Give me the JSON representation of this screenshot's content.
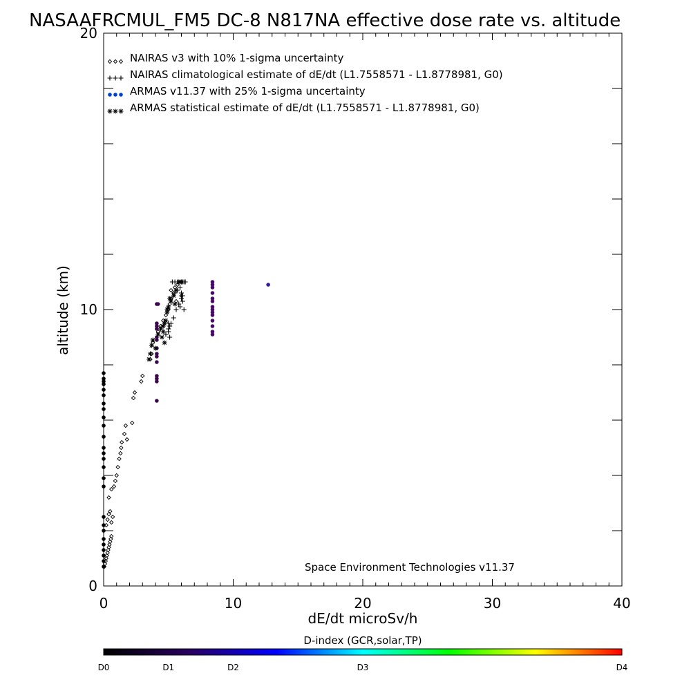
{
  "chart_data": {
    "type": "scatter",
    "title": "NASAAFRCMUL_FM5 DC-8   N817NA effective dose rate vs. altitude",
    "xlabel": "dE/dt microSv/h",
    "ylabel": "altitude (km)",
    "xlim": [
      0,
      40
    ],
    "ylim": [
      0,
      20
    ],
    "x_ticks": [
      "0",
      "10",
      "20",
      "30",
      "40"
    ],
    "y_ticks": [
      "0",
      "10",
      "20"
    ],
    "grid": false,
    "legend_placement": "top-left",
    "credit": "Space Environment Technologies v11.37",
    "series": [
      {
        "name": "NAIRAS v3 with 10% 1-sigma uncertainty",
        "marker": "diamond",
        "color": "#000000",
        "x": [
          0.05,
          0.1,
          0.15,
          0.2,
          0.25,
          0.3,
          0.35,
          0.4,
          0.45,
          0.5,
          0.55,
          0.6,
          0.2,
          0.3,
          0.4,
          0.5,
          0.6,
          0.7,
          0.4,
          0.6,
          0.8,
          0.9,
          1.0,
          1.1,
          1.2,
          1.3,
          1.35,
          1.4,
          1.6,
          1.7,
          1.8,
          2.2,
          2.3,
          2.4,
          2.9,
          3.0,
          3.6,
          3.7,
          3.8,
          4.2,
          4.4,
          4.6,
          4.8,
          5.0,
          5.1,
          5.2,
          5.4,
          5.5,
          5.7,
          5.9,
          5.2,
          5.6,
          6.0
        ],
        "y": [
          0.7,
          0.8,
          0.9,
          1.0,
          1.1,
          1.2,
          1.3,
          1.4,
          1.5,
          1.6,
          1.7,
          1.8,
          2.2,
          2.4,
          2.6,
          2.7,
          2.3,
          2.5,
          3.2,
          3.5,
          3.6,
          3.8,
          4.0,
          4.3,
          4.6,
          4.8,
          5.0,
          5.2,
          5.5,
          5.8,
          5.3,
          5.9,
          6.8,
          7.0,
          7.4,
          7.6,
          8.2,
          8.4,
          8.8,
          9.2,
          9.4,
          9.6,
          9.8,
          10.0,
          10.2,
          10.4,
          10.6,
          10.8,
          10.9,
          11.0,
          10.7,
          10.3,
          10.5
        ]
      },
      {
        "name": "NAIRAS climatological estimate of dE/dt (L1.7558571 - L1.8778981, G0)",
        "marker": "plus",
        "color": "#000000",
        "x": [
          4.8,
          5.0,
          5.2,
          5.4,
          5.6,
          5.8,
          6.0,
          6.1,
          6.2,
          5.9,
          6.1,
          5.5,
          5.7,
          5.9,
          6.0,
          5.0,
          5.1,
          5.0,
          5.1,
          5.3,
          5.5,
          5.7,
          5.9,
          6.0,
          6.1,
          6.2,
          6.3
        ],
        "y": [
          9.1,
          9.3,
          9.5,
          9.7,
          10.0,
          10.2,
          10.4,
          10.5,
          10.0,
          10.1,
          10.3,
          10.6,
          10.7,
          10.8,
          10.6,
          9.5,
          9.0,
          9.2,
          9.4,
          11.0,
          11.0,
          11.0,
          11.0,
          11.0,
          11.0,
          11.0,
          11.0
        ]
      },
      {
        "name": "ARMAS v11.37 with 25% 1-sigma uncertainty",
        "marker": "dot",
        "color": "#0044cc",
        "x": [
          0.0,
          0.0,
          0.0,
          0.0,
          0.0,
          0.0,
          0.0,
          0.0,
          0.0,
          0.0,
          0.0,
          0.0,
          0.0,
          0.0,
          0.0,
          0.0,
          0.0,
          0.0,
          0.0,
          0.0,
          0.0,
          0.0,
          0.0,
          0.0,
          0.0,
          0.0,
          4.1,
          4.1,
          4.1,
          4.1,
          4.1,
          4.1,
          4.1,
          4.1,
          4.1,
          4.1,
          4.1,
          4.1,
          4.1,
          4.1,
          4.2,
          8.4,
          8.4,
          8.4,
          8.4,
          8.4,
          8.4,
          8.4,
          8.4,
          8.4,
          8.4,
          8.4,
          8.4,
          8.4,
          8.4,
          12.7
        ],
        "y": [
          0.7,
          0.9,
          1.1,
          1.3,
          1.5,
          1.7,
          2.0,
          2.2,
          2.5,
          3.6,
          3.9,
          4.3,
          4.6,
          5.0,
          5.4,
          5.8,
          6.1,
          6.6,
          6.9,
          7.1,
          7.3,
          7.5,
          7.7,
          7.4,
          6.4,
          4.8,
          6.7,
          7.4,
          7.5,
          7.6,
          8.1,
          8.3,
          8.4,
          8.6,
          8.9,
          9.0,
          9.3,
          9.4,
          9.5,
          10.2,
          10.2,
          9.1,
          9.2,
          9.4,
          9.6,
          9.8,
          9.9,
          10.1,
          10.3,
          10.4,
          10.6,
          10.8,
          10.9,
          11.0,
          10.0,
          10.9
        ],
        "point_colors": [
          "#000000",
          "#000000",
          "#000000",
          "#000000",
          "#000000",
          "#000000",
          "#000000",
          "#000000",
          "#000000",
          "#000000",
          "#000000",
          "#000000",
          "#000000",
          "#000000",
          "#000000",
          "#000000",
          "#000000",
          "#000000",
          "#000000",
          "#000000",
          "#000000",
          "#000000",
          "#000000",
          "#000000",
          "#000000",
          "#000000",
          "#3a0a4a",
          "#3a0a4a",
          "#3a0a4a",
          "#3a0a4a",
          "#3a0a4a",
          "#3a0a4a",
          "#3a0a4a",
          "#3a0a4a",
          "#3a0a4a",
          "#3a0a4a",
          "#3a0a4a",
          "#3a0a4a",
          "#3a0a4a",
          "#3a0a4a",
          "#3a0a4a",
          "#4a0a6a",
          "#4a0a6a",
          "#4a0a6a",
          "#4a0a6a",
          "#4a0a6a",
          "#4a0a6a",
          "#4a0a6a",
          "#4a0a6a",
          "#4a0a6a",
          "#4a0a6a",
          "#4a0a6a",
          "#4a0a6a",
          "#4a0a6a",
          "#4a0a6a",
          "#3a1a9a"
        ]
      },
      {
        "name": "ARMAS statistical estimate of dE/dt (L1.7558571 - L1.8778981, G0)",
        "marker": "asterisk",
        "color": "#000000",
        "x": [
          3.5,
          3.6,
          3.7,
          3.8,
          4.0,
          4.2,
          4.4,
          4.5,
          4.6,
          4.7,
          4.8,
          4.9,
          5.0,
          5.2,
          5.4,
          5.5,
          5.6,
          5.8,
          6.0,
          4.6,
          4.7,
          4.9,
          5.1
        ],
        "y": [
          8.2,
          8.4,
          8.7,
          8.9,
          8.6,
          9.1,
          9.3,
          9.0,
          9.4,
          8.8,
          9.6,
          9.9,
          10.1,
          10.3,
          10.5,
          10.2,
          10.7,
          11.0,
          11.0,
          9.2,
          9.5,
          10.0,
          10.4
        ]
      }
    ],
    "colorbar": {
      "label": "D-index (GCR,solar,TP)",
      "ticks": [
        "D0",
        "D1",
        "D2",
        "D3",
        "D4"
      ],
      "tick_positions": [
        0,
        0.125,
        0.25,
        0.5,
        1.0
      ],
      "stops": [
        "#000000",
        "#2a0060",
        "#0000ff",
        "#00ffff",
        "#00ff00",
        "#ffff00",
        "#ff0000"
      ]
    }
  }
}
